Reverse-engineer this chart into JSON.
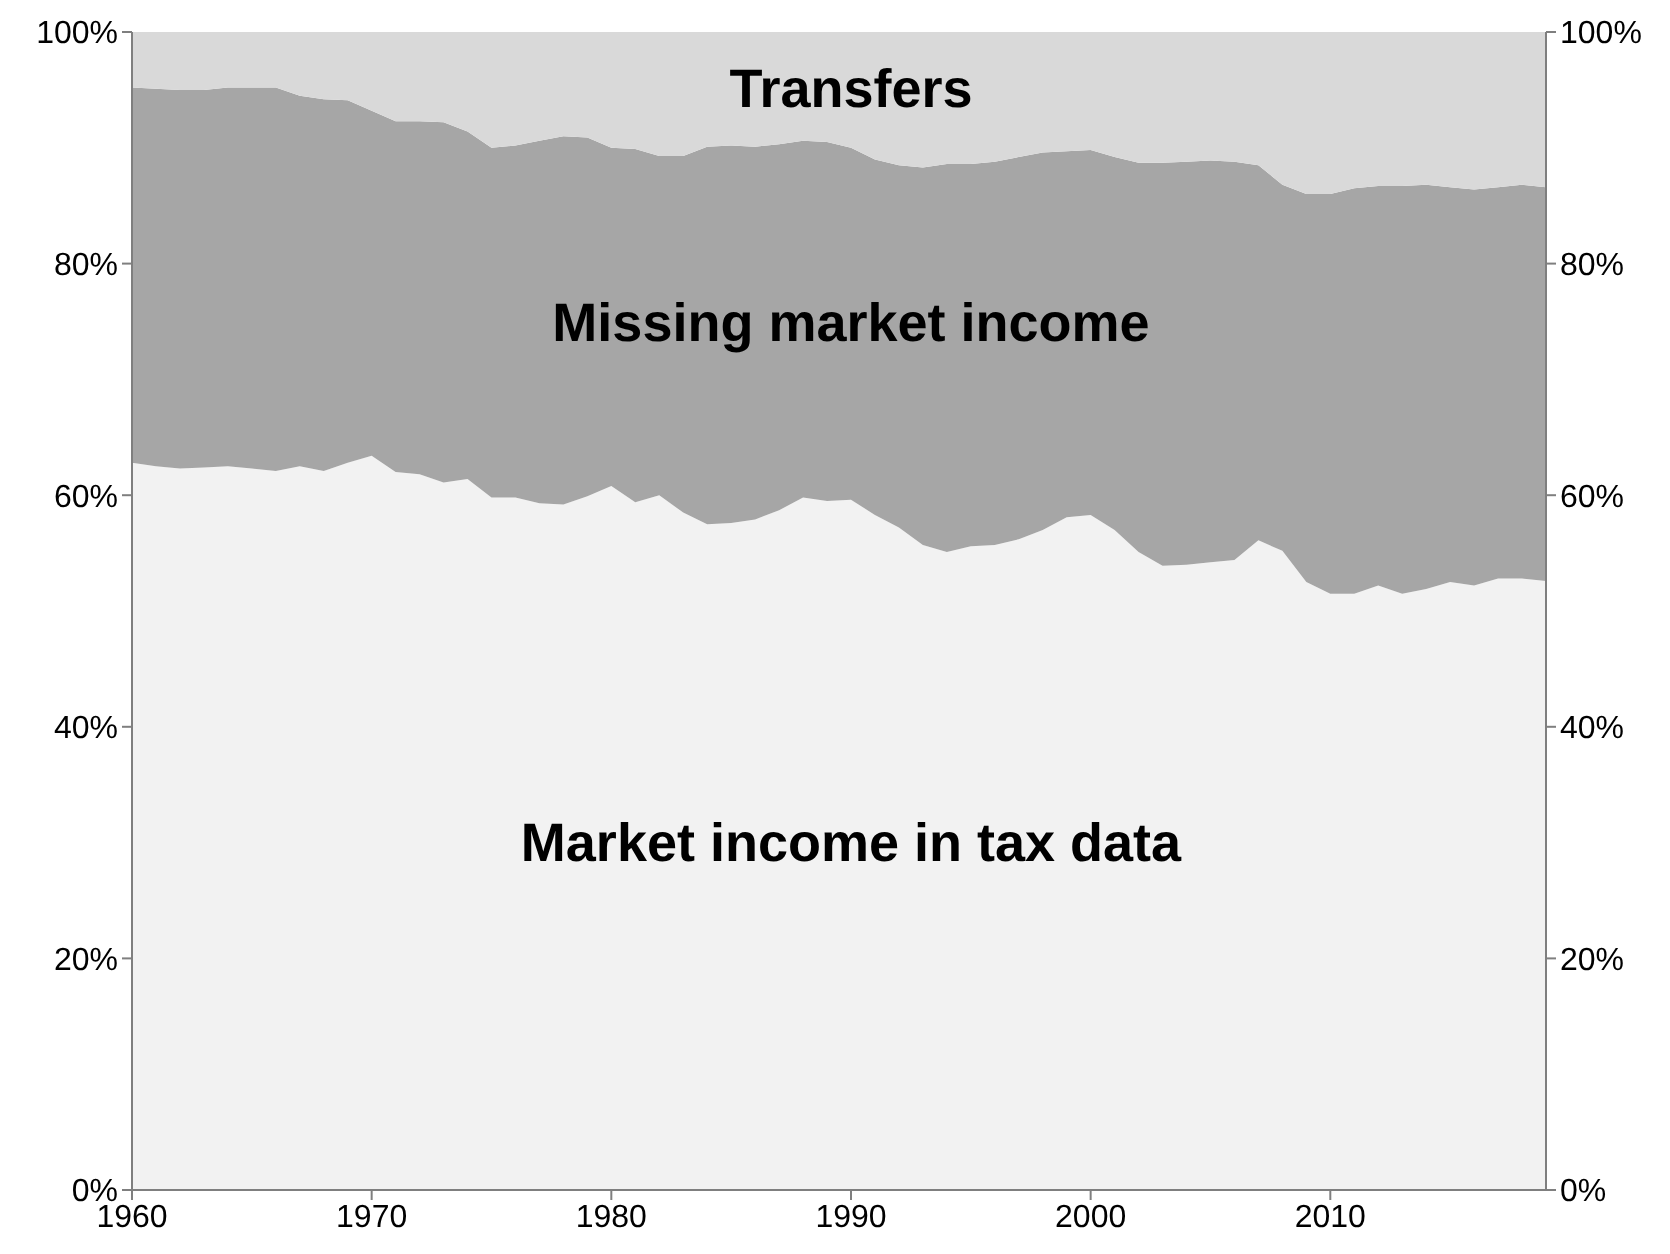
{
  "chart_data": {
    "type": "area",
    "stacked": true,
    "x": [
      1960,
      1961,
      1962,
      1963,
      1964,
      1965,
      1966,
      1967,
      1968,
      1969,
      1970,
      1971,
      1972,
      1973,
      1974,
      1975,
      1976,
      1977,
      1978,
      1979,
      1980,
      1981,
      1982,
      1983,
      1984,
      1985,
      1986,
      1987,
      1988,
      1989,
      1990,
      1991,
      1992,
      1993,
      1994,
      1995,
      1996,
      1997,
      1998,
      1999,
      2000,
      2001,
      2002,
      2003,
      2004,
      2005,
      2006,
      2007,
      2008,
      2009,
      2010,
      2011,
      2012,
      2013,
      2014,
      2015,
      2016,
      2017,
      2018,
      2019
    ],
    "series": [
      {
        "name": "Market income in tax data",
        "color": "#f2f2f2",
        "values": [
          62.8,
          62.5,
          62.3,
          62.4,
          62.5,
          62.3,
          62.1,
          62.5,
          62.1,
          62.8,
          63.4,
          62.0,
          61.8,
          61.1,
          61.4,
          59.8,
          59.8,
          59.3,
          59.2,
          59.9,
          60.8,
          59.4,
          60.0,
          58.5,
          57.5,
          57.6,
          57.9,
          58.7,
          59.8,
          59.5,
          59.6,
          58.3,
          57.2,
          55.7,
          55.1,
          55.6,
          55.7,
          56.2,
          57.0,
          58.1,
          58.3,
          57.0,
          55.1,
          53.9,
          54.0,
          54.2,
          54.4,
          56.1,
          55.2,
          52.5,
          51.5,
          51.5,
          52.2,
          51.5,
          51.9,
          52.5,
          52.2,
          52.8,
          52.8,
          52.6
        ]
      },
      {
        "name": "Missing market income",
        "color": "#a6a6a6",
        "values": [
          32.4,
          32.6,
          32.7,
          32.6,
          32.7,
          32.9,
          33.1,
          32.0,
          32.1,
          31.3,
          29.8,
          30.3,
          30.5,
          31.1,
          30.0,
          30.2,
          30.4,
          31.3,
          31.8,
          31.0,
          29.2,
          30.5,
          29.3,
          30.8,
          32.6,
          32.6,
          32.2,
          31.6,
          30.8,
          31.0,
          30.4,
          30.7,
          31.3,
          32.6,
          33.5,
          33.0,
          33.1,
          33.0,
          32.6,
          31.6,
          31.5,
          32.2,
          33.6,
          34.8,
          34.8,
          34.7,
          34.4,
          32.4,
          31.6,
          33.5,
          34.5,
          35.0,
          34.5,
          35.2,
          34.9,
          34.1,
          34.2,
          33.8,
          34.0,
          34.0
        ]
      },
      {
        "name": "Transfers",
        "color": "#d9d9d9",
        "values": [
          4.8,
          4.9,
          5.0,
          5.0,
          4.8,
          4.8,
          4.8,
          5.5,
          5.8,
          5.9,
          6.8,
          7.7,
          7.7,
          7.8,
          8.6,
          10.0,
          9.8,
          9.4,
          9.0,
          9.1,
          10.0,
          10.1,
          10.7,
          10.7,
          9.9,
          9.8,
          9.9,
          9.7,
          9.4,
          9.5,
          10.0,
          11.0,
          11.5,
          11.7,
          11.4,
          11.4,
          11.2,
          10.8,
          10.4,
          10.3,
          10.2,
          10.8,
          11.3,
          11.3,
          11.2,
          11.1,
          11.2,
          11.5,
          13.2,
          14.0,
          14.0,
          13.5,
          13.3,
          13.3,
          13.2,
          13.4,
          13.6,
          13.4,
          13.2,
          13.4
        ]
      }
    ],
    "xlim": [
      1960,
      2019
    ],
    "xticks": [
      1960,
      1970,
      1980,
      1990,
      2000,
      2010
    ],
    "ylim": [
      0,
      100
    ],
    "yticks": [
      {
        "value": 0,
        "label": "0%"
      },
      {
        "value": 20,
        "label": "20%"
      },
      {
        "value": 40,
        "label": "40%"
      },
      {
        "value": 60,
        "label": "60%"
      },
      {
        "value": 80,
        "label": "80%"
      },
      {
        "value": 100,
        "label": "100%"
      }
    ],
    "y2lim": [
      0,
      100
    ],
    "y2ticks": [
      {
        "value": 0,
        "label": "0%"
      },
      {
        "value": 20,
        "label": "20%"
      },
      {
        "value": 40,
        "label": "40%"
      },
      {
        "value": 60,
        "label": "60%"
      },
      {
        "value": 80,
        "label": "80%"
      },
      {
        "value": 100,
        "label": "100%"
      }
    ],
    "grid": false,
    "legend": false
  }
}
